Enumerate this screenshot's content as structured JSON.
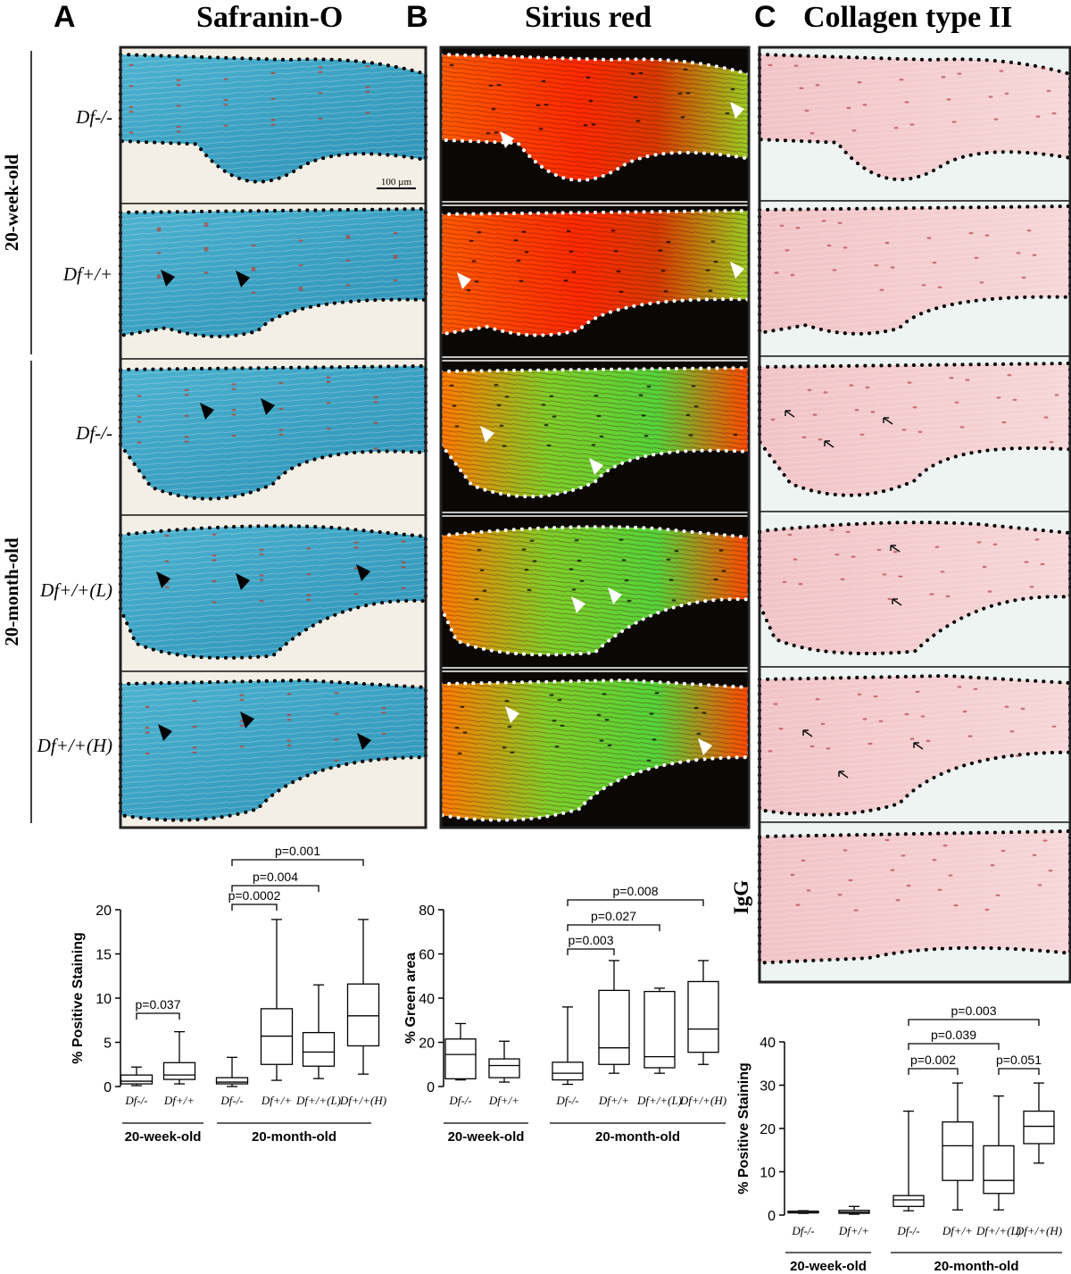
{
  "panels": [
    {
      "letter": "A",
      "title": "Safranin-O"
    },
    {
      "letter": "B",
      "title": "Sirius red"
    },
    {
      "letter": "C",
      "title": "Collagen type II"
    }
  ],
  "groups": {
    "week": "20-week-old",
    "month": "20-month-old"
  },
  "row_labels": [
    "Df-/-",
    "Df+/+",
    "Df-/-",
    "Df+/+(L)",
    "Df+/+(H)"
  ],
  "igg_label": "IgG",
  "scale_bar": "100 µm",
  "colors": {
    "safranin": "#3aa7c4",
    "sirius": "#ff3300",
    "sirius_green": "#66dd22",
    "collagen": "#f3c9cb"
  },
  "chart_data": [
    {
      "type": "box",
      "ylabel": "% Positive Staining",
      "ylim": [
        0,
        20
      ],
      "yticks": [
        0,
        5,
        10,
        15,
        20
      ],
      "groups": [
        "20-week-old",
        "20-month-old"
      ],
      "categories": [
        "Df-/-",
        "Df+/+",
        "Df-/-",
        "Df+/+",
        "Df+/+(L)",
        "Df+/+(H)"
      ],
      "boxes": [
        {
          "min": 0.1,
          "q1": 0.3,
          "median": 0.6,
          "q3": 1.3,
          "max": 2.2
        },
        {
          "min": 0.3,
          "q1": 0.8,
          "median": 1.3,
          "q3": 2.7,
          "max": 6.2
        },
        {
          "min": 0.0,
          "q1": 0.3,
          "median": 0.5,
          "q3": 1.0,
          "max": 3.3
        },
        {
          "min": 0.7,
          "q1": 2.5,
          "median": 5.7,
          "q3": 8.8,
          "max": 18.9
        },
        {
          "min": 0.9,
          "q1": 2.3,
          "median": 3.9,
          "q3": 6.1,
          "max": 11.5
        },
        {
          "min": 1.4,
          "q1": 4.6,
          "median": 8.0,
          "q3": 11.6,
          "max": 18.9
        }
      ],
      "comparisons": [
        {
          "from": 0,
          "to": 1,
          "label": "p=0.037"
        },
        {
          "from": 2,
          "to": 3,
          "label": "p=0.0002"
        },
        {
          "from": 2,
          "to": 4,
          "label": "p=0.004"
        },
        {
          "from": 2,
          "to": 5,
          "label": "p=0.001"
        }
      ]
    },
    {
      "type": "box",
      "ylabel": "% Green area",
      "ylim": [
        0,
        80
      ],
      "yticks": [
        0,
        20,
        40,
        60,
        80
      ],
      "groups": [
        "20-week-old",
        "20-month-old"
      ],
      "categories": [
        "Df-/-",
        "Df+/+",
        "Df-/-",
        "Df+/+",
        "Df+/+(L)",
        "Df+/+(H)"
      ],
      "boxes": [
        {
          "min": 3.0,
          "q1": 3.5,
          "median": 14.5,
          "q3": 21.5,
          "max": 28.5
        },
        {
          "min": 2.0,
          "q1": 4.0,
          "median": 9.5,
          "q3": 12.5,
          "max": 20.5
        },
        {
          "min": 1.0,
          "q1": 3.0,
          "median": 6.0,
          "q3": 11.0,
          "max": 36.0
        },
        {
          "min": 6.0,
          "q1": 10.0,
          "median": 17.5,
          "q3": 43.5,
          "max": 57.0
        },
        {
          "min": 6.0,
          "q1": 8.5,
          "median": 13.5,
          "q3": 43.0,
          "max": 44.5
        },
        {
          "min": 10.0,
          "q1": 15.5,
          "median": 26.0,
          "q3": 47.5,
          "max": 57.0
        }
      ],
      "comparisons": [
        {
          "from": 2,
          "to": 3,
          "label": "p=0.003"
        },
        {
          "from": 2,
          "to": 4,
          "label": "p=0.027"
        },
        {
          "from": 2,
          "to": 5,
          "label": "p=0.008"
        }
      ]
    },
    {
      "type": "box",
      "ylabel": "% Positive Staining",
      "ylim": [
        0,
        40
      ],
      "yticks": [
        0,
        10,
        20,
        30,
        40
      ],
      "groups": [
        "20-week-old",
        "20-month-old"
      ],
      "categories": [
        "Df-/-",
        "Df+/+",
        "Df-/-",
        "Df+/+",
        "Df+/+(L)",
        "Df+/+(H)"
      ],
      "boxes": [
        {
          "min": 0.4,
          "q1": 0.5,
          "median": 0.6,
          "q3": 0.9,
          "max": 1.0
        },
        {
          "min": 0.2,
          "q1": 0.4,
          "median": 0.7,
          "q3": 1.1,
          "max": 2.0
        },
        {
          "min": 1.0,
          "q1": 2.0,
          "median": 3.5,
          "q3": 4.5,
          "max": 24.0
        },
        {
          "min": 1.2,
          "q1": 8.0,
          "median": 16.0,
          "q3": 21.5,
          "max": 30.5
        },
        {
          "min": 1.2,
          "q1": 5.0,
          "median": 8.0,
          "q3": 16.0,
          "max": 27.5
        },
        {
          "min": 12.0,
          "q1": 16.5,
          "median": 20.5,
          "q3": 24.0,
          "max": 30.5
        }
      ],
      "comparisons": [
        {
          "from": 2,
          "to": 3,
          "label": "p=0.002"
        },
        {
          "from": 2,
          "to": 4,
          "label": "p=0.039"
        },
        {
          "from": 2,
          "to": 5,
          "label": "p=0.003"
        },
        {
          "from": 4,
          "to": 5,
          "label": "p=0.051"
        }
      ]
    }
  ]
}
